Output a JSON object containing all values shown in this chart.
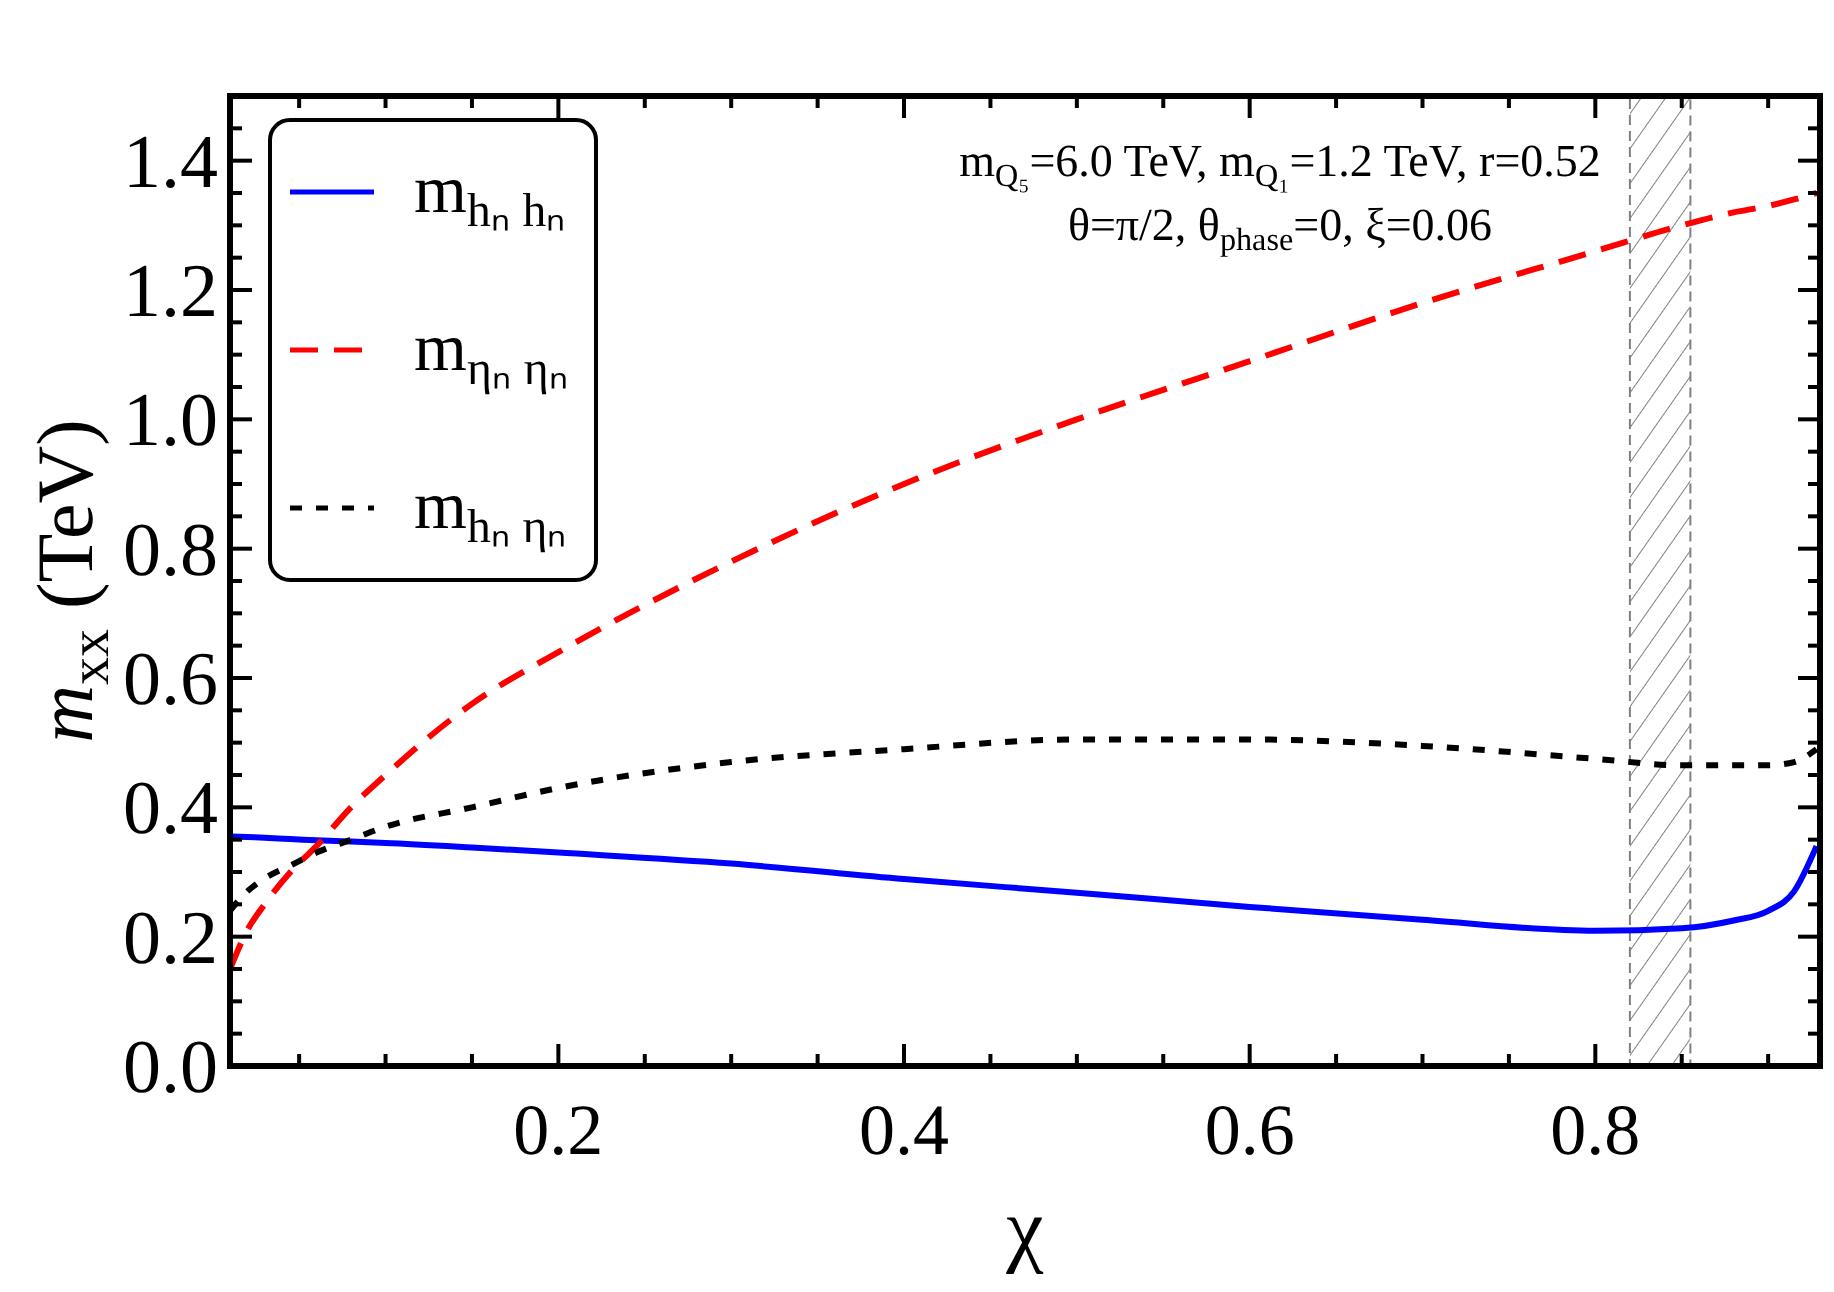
{
  "chart_data": {
    "type": "line",
    "xlabel": "χ",
    "ylabel": "m$_{xx}$ (TeV)",
    "annotations": [
      "m$_{Q₅}$=6.0 TeV, m$_{Q₁}$=1.2 TeV, r=0.52",
      "θ=π/2, θ$_{phase}$=0, ξ=0.06"
    ],
    "x": [
      0.01,
      0.02,
      0.03,
      0.045,
      0.06,
      0.08,
      0.1,
      0.15,
      0.2,
      0.3,
      0.4,
      0.5,
      0.6,
      0.7,
      0.8,
      0.85,
      0.88,
      0.9,
      0.915,
      0.928
    ],
    "series": [
      {
        "name": "m$_{hₙ hₙ}$",
        "color": "#0000ff",
        "line_style": "solid",
        "values": [
          0.355,
          0.354,
          0.353,
          0.351,
          0.349,
          0.347,
          0.345,
          0.338,
          0.33,
          0.313,
          0.289,
          0.268,
          0.246,
          0.226,
          0.209,
          0.213,
          0.225,
          0.24,
          0.27,
          0.34
        ]
      },
      {
        "name": "m$_{ηₙ ηₙ}$",
        "color": "#ff0000",
        "line_style": "dashed",
        "values": [
          0.15,
          0.21,
          0.25,
          0.3,
          0.34,
          0.4,
          0.45,
          0.56,
          0.64,
          0.78,
          0.9,
          1.0,
          1.09,
          1.18,
          1.26,
          1.3,
          1.32,
          1.33,
          1.34,
          1.35
        ]
      },
      {
        "name": "m$_{hₙ ηₙ}$",
        "color": "#000000",
        "line_style": "dotted",
        "values": [
          0.24,
          0.27,
          0.29,
          0.31,
          0.33,
          0.35,
          0.37,
          0.4,
          0.43,
          0.47,
          0.49,
          0.505,
          0.505,
          0.495,
          0.475,
          0.465,
          0.465,
          0.465,
          0.47,
          0.49
        ]
      }
    ],
    "xlim": [
      0.01,
      0.93
    ],
    "ylim": [
      0,
      1.5
    ],
    "xticks": [
      {
        "value": 0.05,
        "label": null
      },
      {
        "value": 0.1,
        "label": null
      },
      {
        "value": 0.15,
        "label": null
      },
      0.2,
      {
        "value": 0.25,
        "label": null
      },
      {
        "value": 0.3,
        "label": null
      },
      {
        "value": 0.35,
        "label": null
      },
      0.4,
      {
        "value": 0.45,
        "label": null
      },
      {
        "value": 0.5,
        "label": null
      },
      {
        "value": 0.55,
        "label": null
      },
      0.6,
      {
        "value": 0.65,
        "label": null
      },
      {
        "value": 0.7,
        "label": null
      },
      {
        "value": 0.75,
        "label": null
      },
      0.8,
      {
        "value": 0.85,
        "label": null
      },
      {
        "value": 0.9,
        "label": null
      }
    ],
    "yticks": [
      {
        "value": 0,
        "label": "0.0"
      },
      {
        "value": 0.05,
        "label": null
      },
      {
        "value": 0.1,
        "label": null
      },
      {
        "value": 0.15,
        "label": null
      },
      0.2,
      {
        "value": 0.25,
        "label": null
      },
      {
        "value": 0.3,
        "label": null
      },
      {
        "value": 0.35,
        "label": null
      },
      0.4,
      {
        "value": 0.45,
        "label": null
      },
      {
        "value": 0.5,
        "label": null
      },
      {
        "value": 0.55,
        "label": null
      },
      0.6,
      {
        "value": 0.65,
        "label": null
      },
      {
        "value": 0.7,
        "label": null
      },
      {
        "value": 0.75,
        "label": null
      },
      0.8,
      {
        "value": 0.85,
        "label": null
      },
      {
        "value": 0.9,
        "label": null
      },
      {
        "value": 0.95,
        "label": null
      },
      {
        "value": 1,
        "label": "1.0"
      },
      {
        "value": 1.05,
        "label": null
      },
      {
        "value": 1.1,
        "label": null
      },
      {
        "value": 1.15,
        "label": null
      },
      1.2,
      {
        "value": 1.25,
        "label": null
      },
      {
        "value": 1.3,
        "label": null
      },
      {
        "value": 1.35,
        "label": null
      },
      1.4,
      {
        "value": 1.45,
        "label": null
      }
    ],
    "bands": [
      {
        "axis": "x",
        "from": 0.82,
        "to": 0.855,
        "color": "#808080"
      }
    ],
    "legend": "top left"
  }
}
